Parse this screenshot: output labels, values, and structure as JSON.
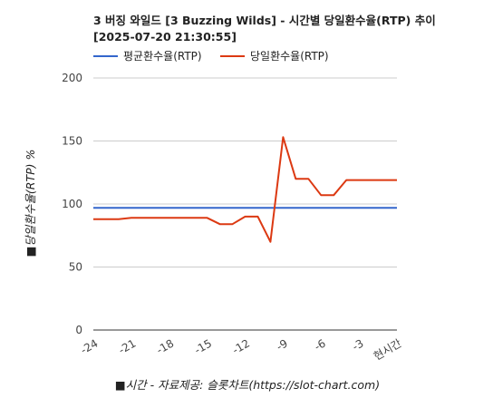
{
  "chart_data": {
    "type": "line",
    "title_line1": "3 버징 와일드 [3 Buzzing Wilds] - 시간별 당일환수율(RTP) 추이",
    "title_line2": "[2025-07-20 21:30:55]",
    "xlabel": "■시간 - 자료제공: 슬롯차트(https://slot-chart.com)",
    "ylabel": "■당일환수율(RTP) %",
    "ylim": [
      0,
      200
    ],
    "yticks": [
      0,
      50,
      100,
      150,
      200
    ],
    "xlim": [
      -24,
      0
    ],
    "xticks": [
      -24,
      -21,
      -18,
      -15,
      -12,
      -9,
      -6,
      -3,
      0
    ],
    "xtick_labels": [
      "-24",
      "-21",
      "-18",
      "-15",
      "-12",
      "-9",
      "-6",
      "-3",
      "현시간"
    ],
    "grid": true,
    "legend_position": "top-left",
    "series": [
      {
        "name": "평균환수율(RTP)",
        "color": "#3366cc",
        "x": [
          -24,
          0
        ],
        "y": [
          97,
          97
        ]
      },
      {
        "name": "당일환수율(RTP)",
        "color": "#dc3912",
        "x": [
          -24,
          -22,
          -21,
          -20,
          -19,
          -18,
          -17,
          -16,
          -15,
          -14,
          -13,
          -12,
          -11,
          -10,
          -9,
          -8,
          -7,
          -6,
          -5,
          -4,
          -3,
          -2,
          -1,
          0
        ],
        "y": [
          88,
          88,
          89,
          89,
          89,
          89,
          89,
          89,
          89,
          84,
          84,
          90,
          90,
          70,
          153,
          120,
          120,
          107,
          107,
          119,
          119,
          119,
          119,
          119
        ]
      }
    ]
  }
}
